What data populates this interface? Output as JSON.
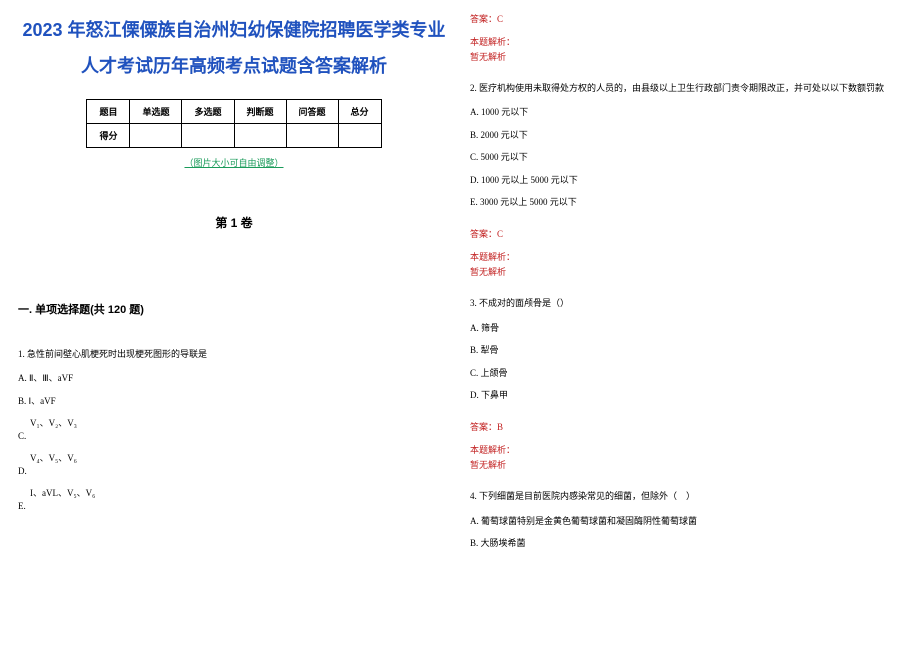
{
  "title": "2023 年怒江傈僳族自治州妇幼保健院招聘医学类专业人才考试历年高频考点试题含答案解析",
  "table": {
    "headers": [
      "题目",
      "单选题",
      "多选题",
      "判断题",
      "问答题",
      "总分"
    ],
    "row_label": "得分"
  },
  "table_note": "（图片大小可自由调整）",
  "volume": "第 1 卷",
  "section": "一. 单项选择题(共 120 题)",
  "q1": {
    "text": "1. 急性前间壁心肌梗死时出现梗死图形的导联是",
    "optA": "A. Ⅱ、Ⅲ、aVF",
    "optB": "B. Ⅰ、aVF",
    "optC_letter": "C.",
    "optC_text": "V₁、V₂、V₃",
    "optD_letter": "D.",
    "optD_text": "V₄、V₅、V₆",
    "optE_letter": "E.",
    "optE_text": "I、aVL、V₅、V₆"
  },
  "answer_c": "答案：C",
  "analysis_label": "本题解析：",
  "analysis_none": "暂无解析",
  "q2": {
    "text": "2. 医疗机构使用未取得处方权的人员的，由县级以上卫生行政部门责令期限改正，并可处以以下数额罚款",
    "optA": "A. 1000 元以下",
    "optB": "B. 2000 元以下",
    "optC": "C. 5000 元以下",
    "optD": "D. 1000 元以上 5000 元以下",
    "optE": "E. 3000 元以上 5000 元以下"
  },
  "q3": {
    "text": "3. 不成对的面颅骨是（）",
    "optA": "A. 筛骨",
    "optB": "B. 犁骨",
    "optC": "C. 上颌骨",
    "optD": "D. 下鼻甲"
  },
  "answer_b": "答案：B",
  "q4": {
    "text": "4. 下列细菌是目前医院内感染常见的细菌，但除外（　）",
    "optA": "A. 葡萄球菌特别是金黄色葡萄球菌和凝固酶阴性葡萄球菌",
    "optB": "B. 大肠埃希菌"
  },
  "colors": {
    "title_color": "#2052be",
    "answer_color": "#c22020",
    "note_color": "#1a9b5a",
    "text_color": "#000000",
    "bg_color": "#ffffff"
  }
}
